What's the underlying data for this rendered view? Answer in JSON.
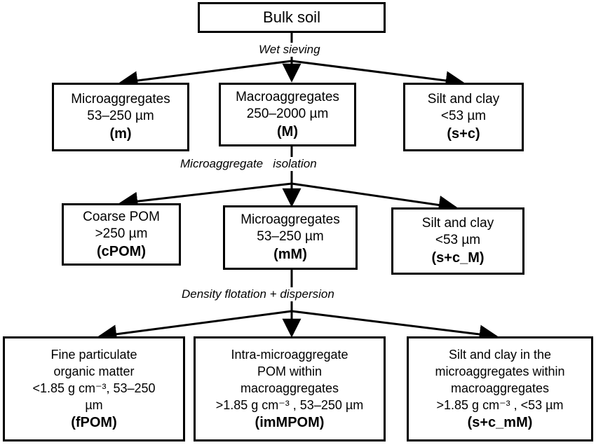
{
  "root": {
    "label": "Bulk soil"
  },
  "steps": {
    "wet_sieving": "Wet sieving",
    "micro_isolation": "Microaggregate   isolation",
    "density": "Density flotation + dispersion"
  },
  "level1": [
    {
      "lines": [
        "Microaggregates",
        "53–250 µm"
      ],
      "code": "(m)"
    },
    {
      "lines": [
        "Macroaggregates",
        "250–2000 µm"
      ],
      "code": "(M)"
    },
    {
      "lines": [
        "Silt and clay",
        "<53 µm"
      ],
      "code": "(s+c)"
    }
  ],
  "level2": [
    {
      "lines": [
        "Coarse POM",
        ">250 µm"
      ],
      "code": "(cPOM)"
    },
    {
      "lines": [
        "Microaggregates",
        "53–250 µm"
      ],
      "code": "(mM)"
    },
    {
      "lines": [
        "Silt and clay",
        "<53 µm"
      ],
      "code": "(s+c_M)"
    }
  ],
  "level3": [
    {
      "lines": [
        "Fine  particulate",
        "organic matter",
        "<1.85 g cm⁻³, 53–250",
        "µm"
      ],
      "code": "(fPOM)"
    },
    {
      "lines": [
        "Intra-microaggregate",
        "POM within",
        "macroaggregates",
        ">1.85 g cm⁻³ , 53–250 µm"
      ],
      "code": "(imMPOM)"
    },
    {
      "lines": [
        "Silt and clay in the",
        "microaggregates within",
        "macroaggregates",
        ">1.85 g cm⁻³ , <53 µm"
      ],
      "code": "(s+c_mM)"
    }
  ]
}
